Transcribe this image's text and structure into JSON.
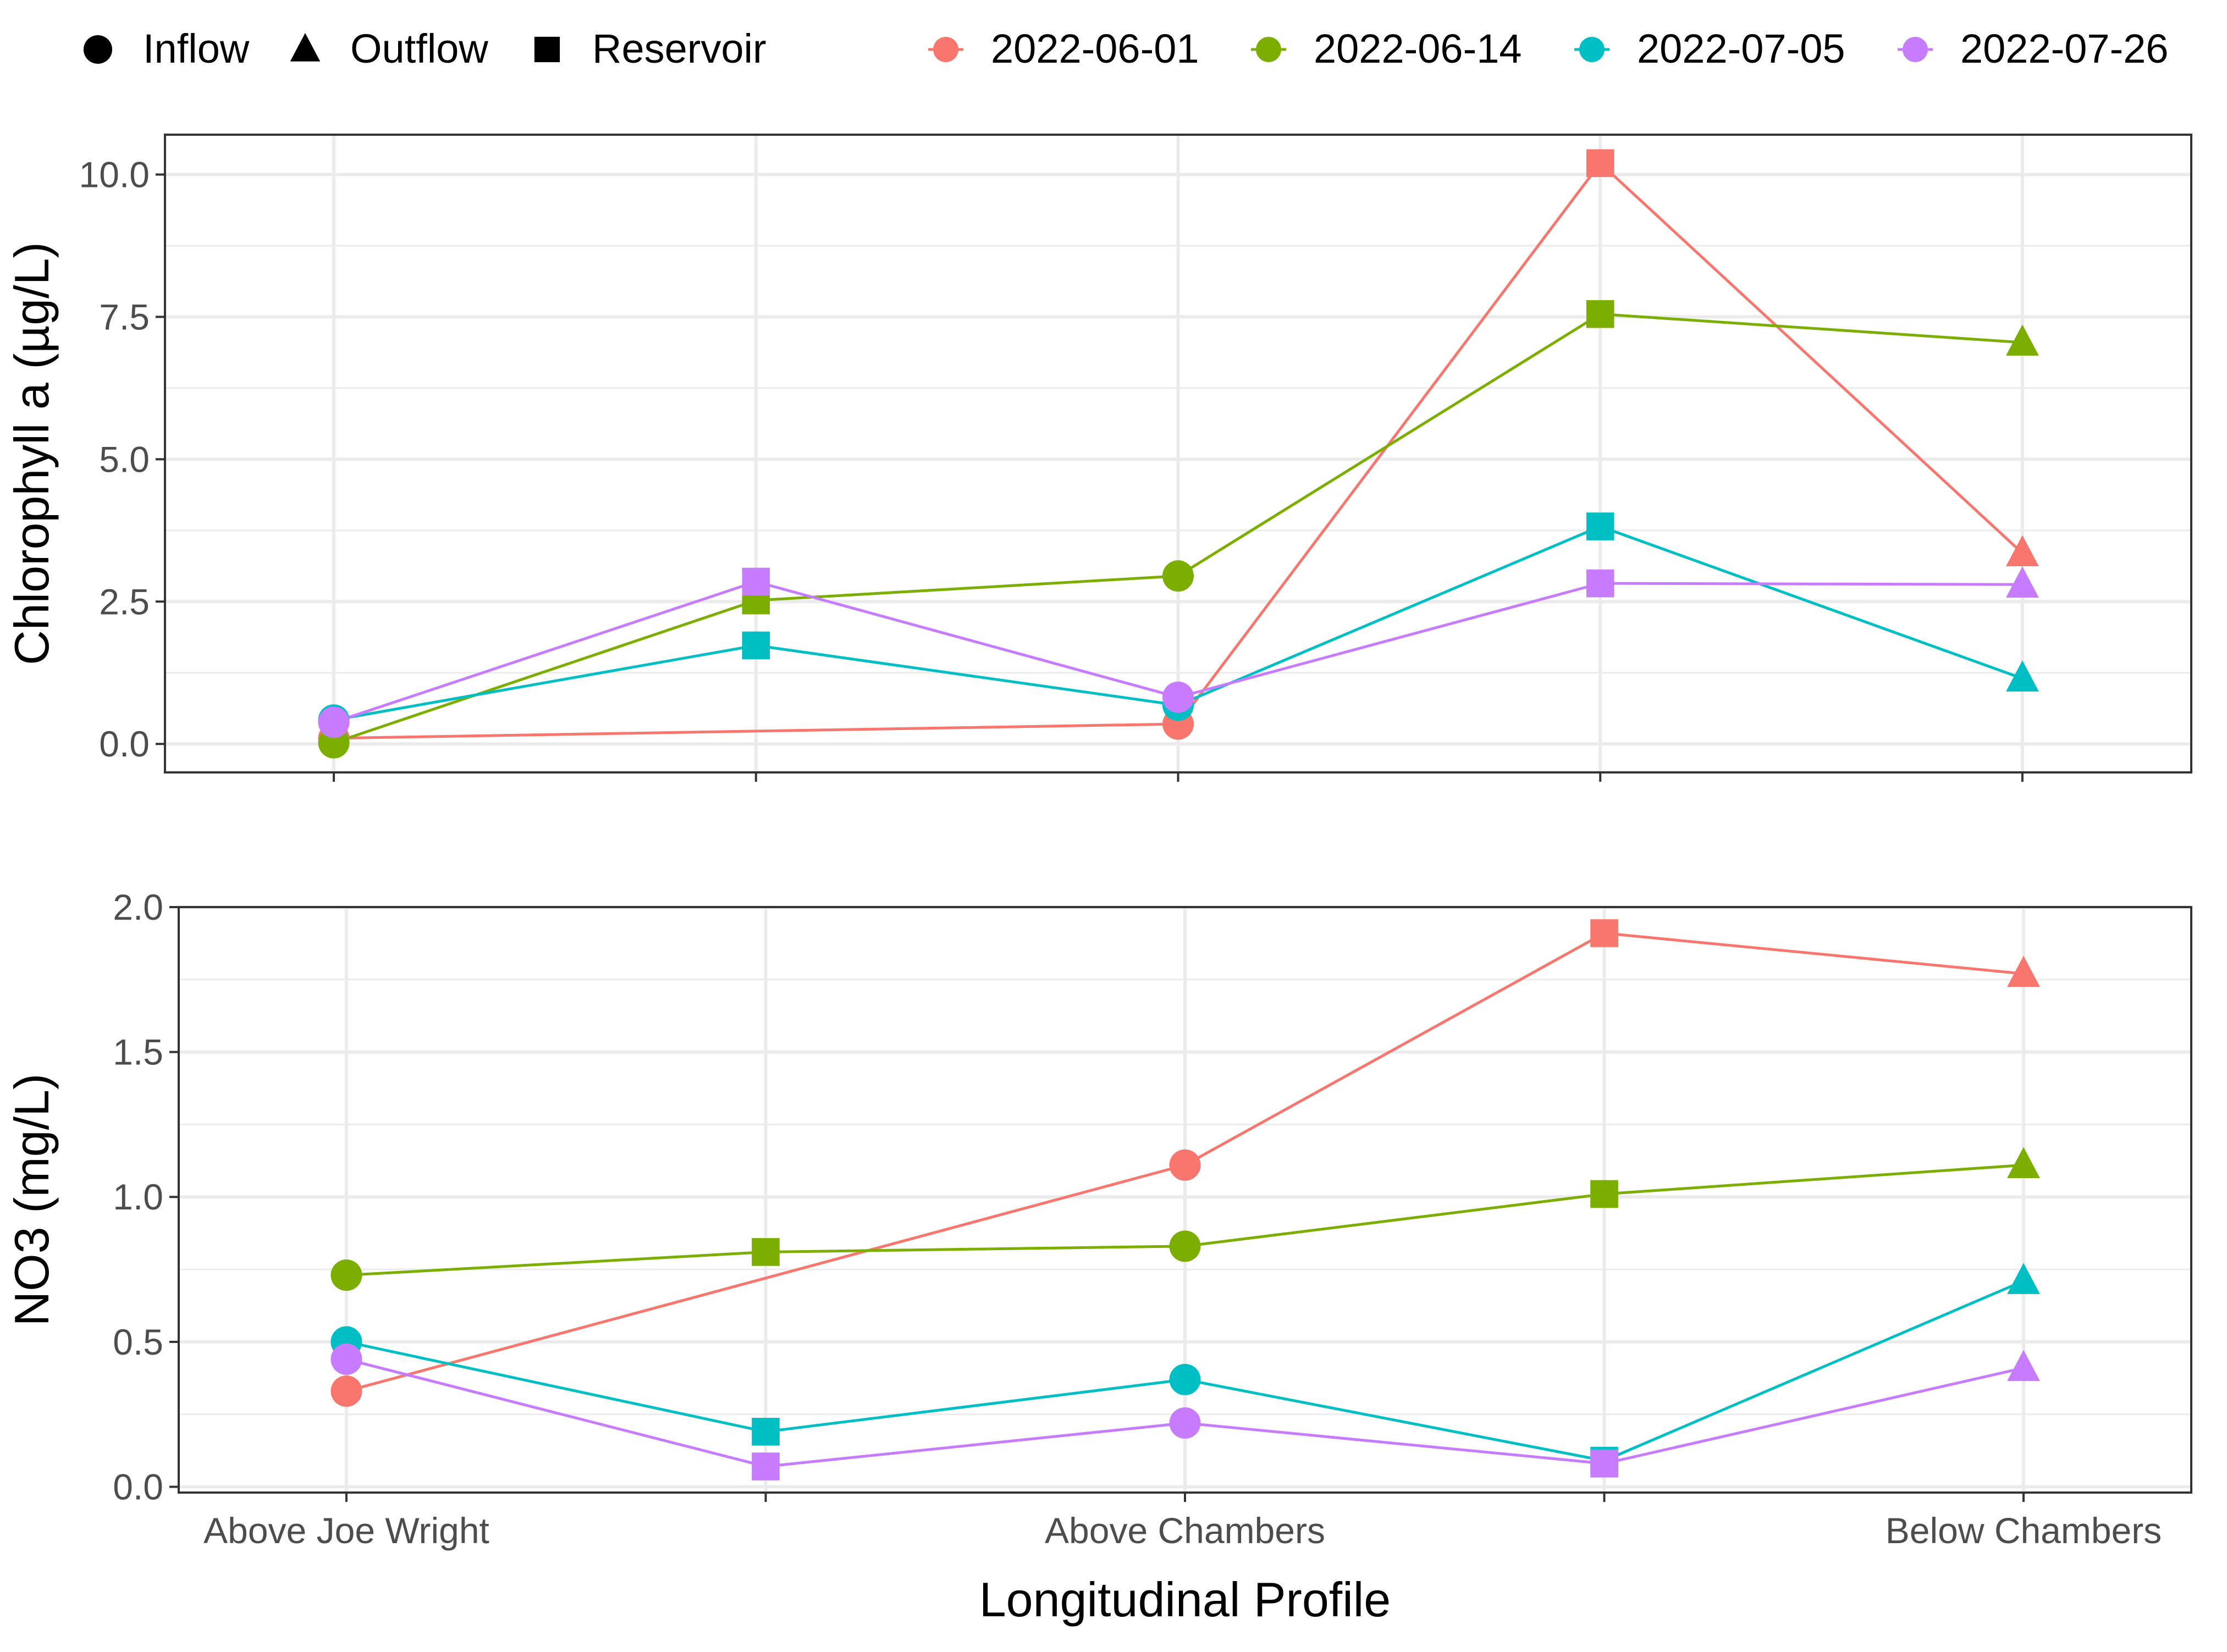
{
  "legend": {
    "shape_items": [
      {
        "label": "Inflow",
        "shape": "circle"
      },
      {
        "label": "Outflow",
        "shape": "triangle"
      },
      {
        "label": "Reservoir",
        "shape": "square"
      }
    ],
    "date_items": [
      {
        "label": "2022-06-01",
        "color": "#F8766D"
      },
      {
        "label": "2022-06-14",
        "color": "#7CAE00"
      },
      {
        "label": "2022-07-05",
        "color": "#00BFC4"
      },
      {
        "label": "2022-07-26",
        "color": "#C77CFF"
      }
    ]
  },
  "chart_data": [
    {
      "type": "line",
      "ylabel": "Chlorophyll a (µg/L)",
      "xlabel": "",
      "ylim": [
        -0.5,
        10.7
      ],
      "yticks": [
        "0.0",
        "2.5",
        "5.0",
        "7.5",
        "10.0"
      ],
      "yticks_values": [
        0,
        2.5,
        5,
        7.5,
        10
      ],
      "x_positions": 5,
      "x_tick_labels": [],
      "point_shapes": [
        "circle",
        "square",
        "circle",
        "square",
        "triangle"
      ],
      "grid": true,
      "series": [
        {
          "name": "2022-06-01",
          "color": "#F8766D",
          "values": [
            0.1,
            null,
            0.35,
            10.2,
            3.35
          ]
        },
        {
          "name": "2022-06-14",
          "color": "#7CAE00",
          "values": [
            0.02,
            2.52,
            2.95,
            7.55,
            7.05
          ]
        },
        {
          "name": "2022-07-05",
          "color": "#00BFC4",
          "values": [
            0.42,
            1.73,
            0.68,
            3.82,
            1.15
          ]
        },
        {
          "name": "2022-07-26",
          "color": "#C77CFF",
          "values": [
            0.38,
            2.85,
            0.82,
            2.82,
            2.8
          ]
        }
      ]
    },
    {
      "type": "line",
      "ylabel": "NO3 (mg/L)",
      "xlabel": "Longitudinal Profile",
      "ylim": [
        -0.02,
        2.0
      ],
      "yticks": [
        "0.0",
        "0.5",
        "1.0",
        "1.5",
        "2.0"
      ],
      "yticks_values": [
        0,
        0.5,
        1,
        1.5,
        2
      ],
      "x_positions": 5,
      "x_tick_labels": [
        "Above Joe Wright",
        "",
        "Above Chambers",
        "",
        "Below Chambers"
      ],
      "point_shapes": [
        "circle",
        "square",
        "circle",
        "square",
        "triangle"
      ],
      "grid": true,
      "series": [
        {
          "name": "2022-06-01",
          "color": "#F8766D",
          "values": [
            0.33,
            null,
            1.11,
            1.91,
            1.77
          ]
        },
        {
          "name": "2022-06-14",
          "color": "#7CAE00",
          "values": [
            0.73,
            0.81,
            0.83,
            1.01,
            1.11
          ]
        },
        {
          "name": "2022-07-05",
          "color": "#00BFC4",
          "values": [
            0.5,
            0.19,
            0.37,
            0.09,
            0.71
          ]
        },
        {
          "name": "2022-07-26",
          "color": "#C77CFF",
          "values": [
            0.44,
            0.07,
            0.22,
            0.08,
            0.41
          ]
        }
      ]
    }
  ]
}
